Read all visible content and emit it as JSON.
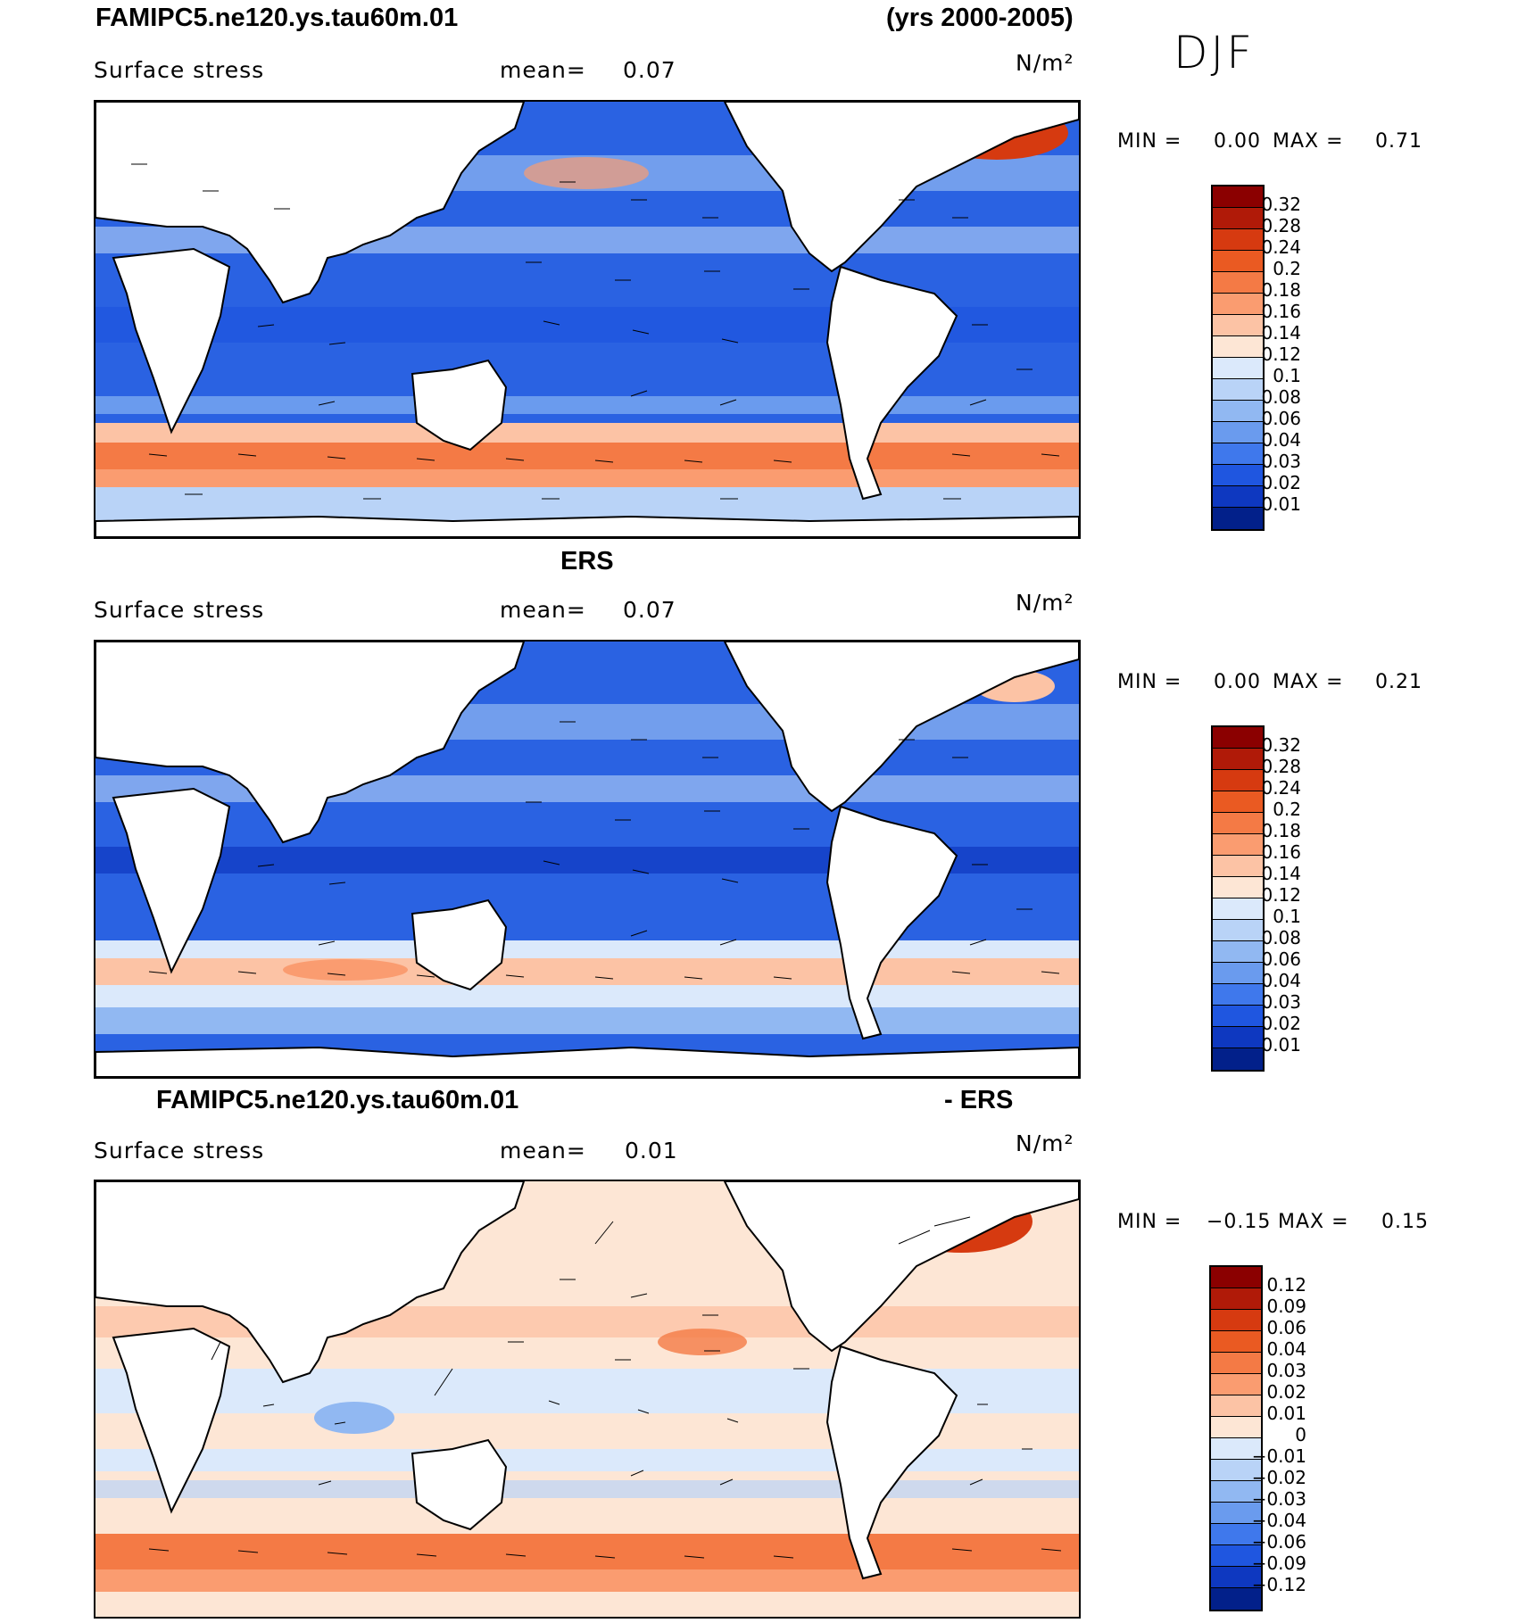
{
  "header": {
    "case_title": "FAMIPC5.ne120.ys.tau60m.01",
    "years": "(yrs 2000-2005)",
    "season": "DJF"
  },
  "panels": [
    {
      "id": "model",
      "caption": "",
      "caption_left": "",
      "caption_right": "",
      "variable": "Surface stress",
      "mean_label": "mean=",
      "mean_value": "0.07",
      "units": "N/m²",
      "min_label": "MIN =",
      "min_value": "0.00",
      "max_label": "MAX =",
      "max_value": "0.71",
      "colorbar": {
        "labels": [
          "0.32",
          "0.28",
          "0.24",
          "0.2",
          "0.18",
          "0.16",
          "0.14",
          "0.12",
          "0.1",
          "0.08",
          "0.06",
          "0.04",
          "0.03",
          "0.02",
          "0.01"
        ],
        "colors": [
          "#8b0000",
          "#b01a08",
          "#d63a10",
          "#ea5a22",
          "#f47a45",
          "#fa9c70",
          "#fcc3a5",
          "#fde6d5",
          "#dbe9fb",
          "#b9d3f7",
          "#91b8f2",
          "#6a9bee",
          "#3f78ec",
          "#1f56e0",
          "#0e38c0",
          "#02208a"
        ]
      }
    },
    {
      "id": "obs",
      "caption": "ERS",
      "caption_left": "",
      "caption_right": "",
      "variable": "Surface stress",
      "mean_label": "mean=",
      "mean_value": "0.07",
      "units": "N/m²",
      "min_label": "MIN =",
      "min_value": "0.00",
      "max_label": "MAX =",
      "max_value": "0.21",
      "colorbar": {
        "labels": [
          "0.32",
          "0.28",
          "0.24",
          "0.2",
          "0.18",
          "0.16",
          "0.14",
          "0.12",
          "0.1",
          "0.08",
          "0.06",
          "0.04",
          "0.03",
          "0.02",
          "0.01"
        ],
        "colors": [
          "#8b0000",
          "#b01a08",
          "#d63a10",
          "#ea5a22",
          "#f47a45",
          "#fa9c70",
          "#fcc3a5",
          "#fde6d5",
          "#dbe9fb",
          "#b9d3f7",
          "#91b8f2",
          "#6a9bee",
          "#3f78ec",
          "#1f56e0",
          "#0e38c0",
          "#02208a"
        ]
      }
    },
    {
      "id": "diff",
      "caption": "",
      "caption_left": "FAMIPC5.ne120.ys.tau60m.01",
      "caption_right": "- ERS",
      "variable": "Surface stress",
      "mean_label": "mean=",
      "mean_value": "0.01",
      "units": "N/m²",
      "min_label": "MIN =",
      "min_value": "−0.15",
      "max_label": "MAX =",
      "max_value": "0.15",
      "colorbar": {
        "labels": [
          "0.12",
          "0.09",
          "0.06",
          "0.04",
          "0.03",
          "0.02",
          "0.01",
          "0",
          "−0.01",
          "−0.02",
          "−0.03",
          "−0.04",
          "−0.06",
          "−0.09",
          "−0.12"
        ],
        "colors": [
          "#8b0000",
          "#b01a08",
          "#d63a10",
          "#ea5a22",
          "#f47a45",
          "#fa9c70",
          "#fcc3a5",
          "#fde6d5",
          "#dbe9fb",
          "#b9d3f7",
          "#91b8f2",
          "#6a9bee",
          "#3f78ec",
          "#1f56e0",
          "#0e38c0",
          "#02208a"
        ]
      }
    }
  ],
  "colors": {
    "land": "#ffffff",
    "coast": "#000000",
    "ocean_low": "#1f56e0",
    "ocean_mid": "#91b8f2",
    "ocean_high": "#ea5a22",
    "diff_bg": "#fde6d5"
  }
}
